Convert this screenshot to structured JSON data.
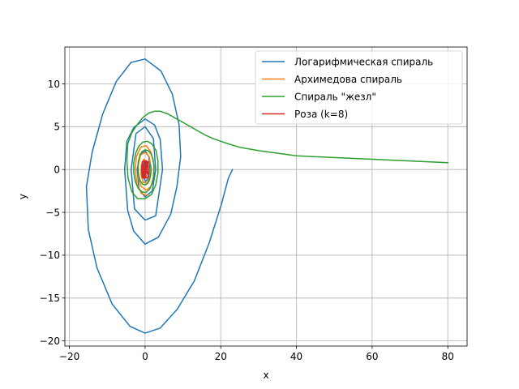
{
  "chart_data": {
    "type": "line",
    "xlabel": "x",
    "ylabel": "y",
    "xlim": [
      -21.2,
      85.1
    ],
    "ylim": [
      -20.6,
      14.3
    ],
    "xticks": [
      -20,
      0,
      20,
      40,
      60,
      80
    ],
    "yticks": [
      -20,
      -15,
      -10,
      -5,
      0,
      5,
      10
    ],
    "grid": true,
    "legend": "top-right",
    "series": [
      {
        "name": "Логарифмическая спираль",
        "color": "#1f77b4",
        "points": [
          [
            0.3,
            0
          ],
          [
            0.45,
            0.5
          ],
          [
            0.1,
            1.0
          ],
          [
            -0.4,
            0.8
          ],
          [
            -0.6,
            0
          ],
          [
            -0.5,
            -0.9
          ],
          [
            0.1,
            -1.4
          ],
          [
            0.9,
            -1.0
          ],
          [
            1.3,
            0
          ],
          [
            1.0,
            1.5
          ],
          [
            0,
            2.2
          ],
          [
            -1.3,
            1.8
          ],
          [
            -2.1,
            0
          ],
          [
            -1.6,
            -2.3
          ],
          [
            0,
            -3.2
          ],
          [
            1.9,
            -2.5
          ],
          [
            2.8,
            0
          ],
          [
            2.2,
            3.6
          ],
          [
            0,
            5.0
          ],
          [
            -2.4,
            4.2
          ],
          [
            -3.7,
            0
          ],
          [
            -2.8,
            -4.6
          ],
          [
            0,
            -5.9
          ],
          [
            2.8,
            -5.4
          ],
          [
            4.6,
            0
          ],
          [
            4.0,
            3.5
          ],
          [
            2.5,
            5.2
          ],
          [
            0,
            5.9
          ],
          [
            -3.0,
            4.9
          ],
          [
            -4.8,
            3.3
          ],
          [
            -5.4,
            0
          ],
          [
            -4.6,
            -4.8
          ],
          [
            -3.0,
            -7.2
          ],
          [
            0,
            -8.7
          ],
          [
            3.5,
            -7.9
          ],
          [
            6.8,
            -5.2
          ],
          [
            8.4,
            -2.0
          ],
          [
            9.4,
            1.5
          ],
          [
            9.0,
            5.2
          ],
          [
            7.2,
            8.8
          ],
          [
            4.2,
            11.5
          ],
          [
            0,
            12.9
          ],
          [
            -3.7,
            12.5
          ],
          [
            -7.6,
            10.3
          ],
          [
            -11.2,
            6.5
          ],
          [
            -14.0,
            2.0
          ],
          [
            -15.5,
            -2.0
          ],
          [
            -15.0,
            -7.0
          ],
          [
            -12.7,
            -11.5
          ],
          [
            -8.7,
            -15.7
          ],
          [
            -4.0,
            -18.3
          ],
          [
            0,
            -19.1
          ],
          [
            4.0,
            -18.5
          ],
          [
            8.5,
            -16.3
          ],
          [
            13.0,
            -13.0
          ],
          [
            17.0,
            -8.5
          ],
          [
            20.2,
            -4.0
          ],
          [
            22.0,
            -1.0
          ],
          [
            23.1,
            0
          ]
        ]
      },
      {
        "name": "Архимедова спираль",
        "color": "#ff7f0e",
        "points": [
          [
            0.15,
            0
          ],
          [
            0.3,
            0.4
          ],
          [
            0,
            0.5
          ],
          [
            -0.4,
            0.2
          ],
          [
            -0.5,
            -0.4
          ],
          [
            0,
            -0.7
          ],
          [
            0.6,
            -0.4
          ],
          [
            0.8,
            0.3
          ],
          [
            0.4,
            1.0
          ],
          [
            -0.4,
            1.2
          ],
          [
            -1.0,
            0.5
          ],
          [
            -1.1,
            -0.6
          ],
          [
            -0.5,
            -1.5
          ],
          [
            0.5,
            -1.6
          ],
          [
            1.3,
            -0.8
          ],
          [
            1.5,
            0.4
          ],
          [
            1.1,
            1.5
          ],
          [
            0,
            2.0
          ],
          [
            -1.2,
            1.7
          ],
          [
            -1.8,
            0.5
          ],
          [
            -1.8,
            -0.9
          ],
          [
            -1.0,
            -2.0
          ],
          [
            0.3,
            -2.4
          ],
          [
            1.5,
            -2.0
          ],
          [
            2.2,
            -0.9
          ],
          [
            2.3,
            0.6
          ],
          [
            1.6,
            2.0
          ],
          [
            0.3,
            2.8
          ],
          [
            -1.2,
            2.6
          ],
          [
            -2.3,
            1.5
          ],
          [
            -2.6,
            0
          ],
          [
            -2.2,
            -1.6
          ],
          [
            -1.0,
            -2.8
          ],
          [
            0.5,
            -3.0
          ]
        ]
      },
      {
        "name": "Спираль \"жезл\"",
        "color": "#2ca02c",
        "points": [
          [
            80,
            0.8
          ],
          [
            60,
            1.2
          ],
          [
            40,
            1.6
          ],
          [
            30,
            2.2
          ],
          [
            25,
            2.6
          ],
          [
            22,
            3.0
          ],
          [
            20,
            3.3
          ],
          [
            18,
            3.6
          ],
          [
            16,
            4.0
          ],
          [
            14,
            4.5
          ],
          [
            12,
            5.0
          ],
          [
            10,
            5.5
          ],
          [
            8,
            6.0
          ],
          [
            6,
            6.5
          ],
          [
            4,
            6.8
          ],
          [
            2.5,
            6.8
          ],
          [
            1,
            6.6
          ],
          [
            -0.5,
            6.1
          ],
          [
            -2,
            5.3
          ],
          [
            -3.5,
            4.3
          ],
          [
            -4.6,
            3.0
          ],
          [
            -4.8,
            1.0
          ],
          [
            -4.5,
            -1.0
          ],
          [
            -3.5,
            -2.6
          ],
          [
            -2,
            -3.4
          ],
          [
            0,
            -3.4
          ],
          [
            1.7,
            -2.9
          ],
          [
            2.8,
            -1.8
          ],
          [
            3.4,
            -0.4
          ],
          [
            3.4,
            1.0
          ],
          [
            2.9,
            2.2
          ],
          [
            1.8,
            3.0
          ],
          [
            0.6,
            3.3
          ],
          [
            -0.6,
            3.2
          ],
          [
            -1.7,
            2.7
          ],
          [
            -2.5,
            1.9
          ],
          [
            -3.0,
            0.8
          ],
          [
            -3.0,
            -0.4
          ],
          [
            -2.6,
            -1.4
          ],
          [
            -1.8,
            -2.2
          ],
          [
            -0.8,
            -2.6
          ],
          [
            0.2,
            -2.7
          ],
          [
            1.2,
            -2.3
          ],
          [
            1.9,
            -1.6
          ],
          [
            2.3,
            -0.7
          ],
          [
            2.4,
            0.3
          ],
          [
            2.1,
            1.2
          ],
          [
            1.6,
            1.8
          ],
          [
            0.8,
            2.2
          ],
          [
            0,
            2.3
          ],
          [
            -0.8,
            2.1
          ],
          [
            -1.4,
            1.6
          ],
          [
            -1.8,
            0.9
          ],
          [
            -1.9,
            0.1
          ],
          [
            -1.7,
            -0.7
          ],
          [
            -1.3,
            -1.3
          ],
          [
            -0.7,
            -1.7
          ],
          [
            0,
            -1.8
          ],
          [
            0.7,
            -1.6
          ],
          [
            1.2,
            -1.2
          ],
          [
            1.5,
            -0.6
          ],
          [
            1.6,
            0
          ],
          [
            1.4,
            0.6
          ]
        ]
      },
      {
        "name": "Роза (k=8)",
        "color": "#d62728",
        "points": [
          [
            0,
            0
          ],
          [
            0.7,
            0.3
          ],
          [
            0.8,
            0.9
          ],
          [
            0.3,
            1.0
          ],
          [
            0,
            0
          ],
          [
            -0.3,
            1.0
          ],
          [
            -0.8,
            0.9
          ],
          [
            -0.7,
            0.3
          ],
          [
            0,
            0
          ],
          [
            -0.7,
            -0.3
          ],
          [
            -0.8,
            -0.9
          ],
          [
            -0.3,
            -1.0
          ],
          [
            0,
            0
          ],
          [
            0.3,
            -1.0
          ],
          [
            0.8,
            -0.9
          ],
          [
            0.7,
            -0.3
          ],
          [
            0,
            0
          ],
          [
            0.9,
            0
          ],
          [
            0.8,
            0.6
          ],
          [
            0,
            0
          ],
          [
            -0.8,
            0.6
          ],
          [
            -0.9,
            0
          ],
          [
            0,
            0
          ],
          [
            -0.8,
            -0.6
          ],
          [
            -0.9,
            0
          ],
          [
            0,
            0
          ],
          [
            0.8,
            -0.6
          ],
          [
            0.9,
            0
          ],
          [
            0,
            0
          ],
          [
            0.5,
            0.8
          ],
          [
            0,
            1.0
          ],
          [
            0,
            0
          ],
          [
            -0.5,
            -0.8
          ],
          [
            0,
            -1.0
          ],
          [
            0,
            0
          ]
        ]
      }
    ]
  }
}
